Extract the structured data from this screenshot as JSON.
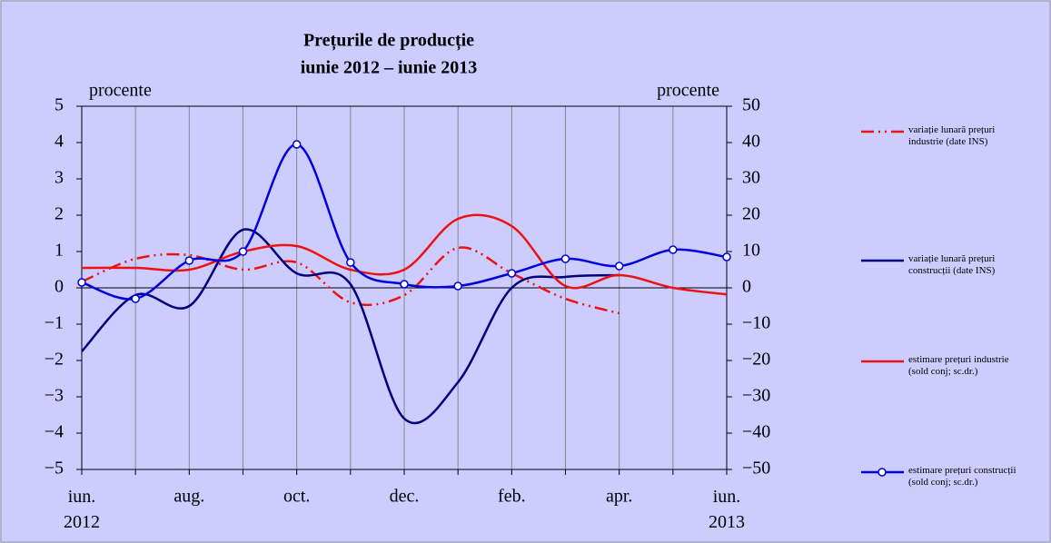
{
  "chart_data": {
    "type": "line",
    "title": "Prețurile de producție",
    "subtitle": "iunie 2012 – iunie 2013",
    "y_label": "procente",
    "y2_label": "procente",
    "categories": [
      "iun. 2012",
      null,
      "aug.",
      null,
      "oct.",
      null,
      "dec.",
      null,
      "feb.",
      null,
      "apr.",
      null,
      "iun. 2013"
    ],
    "ylim": [
      -5,
      5
    ],
    "yticks": [
      {
        "value": -5,
        "label": "−5"
      },
      {
        "value": -4,
        "label": "−4"
      },
      {
        "value": -3,
        "label": "−3"
      },
      {
        "value": -2,
        "label": "−2"
      },
      {
        "value": -1,
        "label": "−1"
      },
      0,
      1,
      2,
      3,
      4,
      5
    ],
    "y2lim": [
      -50,
      50
    ],
    "y2ticks": [
      {
        "value": -50,
        "label": "−50"
      },
      {
        "value": -40,
        "label": "−40"
      },
      {
        "value": -30,
        "label": "−30"
      },
      {
        "value": -20,
        "label": "−20"
      },
      {
        "value": -10,
        "label": "−10"
      },
      0,
      10,
      20,
      30,
      40,
      50
    ],
    "grid": "vertical",
    "legend": "right",
    "series": [
      {
        "name": "variație lunară prețuri industrie (date INS)",
        "color": "#ee1111",
        "style": "dashdot",
        "values": [
          0.17,
          0.8,
          0.9,
          0.5,
          0.7,
          -0.4,
          -0.2,
          1.1,
          0.4,
          -0.3,
          -0.7,
          null,
          null
        ]
      },
      {
        "name": "variație lunară prețuri construcții (date INS)",
        "color": "#000080",
        "style": "solid",
        "values": [
          -1.75,
          -0.2,
          -0.5,
          1.6,
          0.4,
          0.1,
          -3.6,
          -2.6,
          0.0,
          0.3,
          0.35,
          null,
          null
        ]
      },
      {
        "name": "estimare prețuri industrie (sold conj; sc.dr.)",
        "color": "#ee1111",
        "style": "solid",
        "axis": "y2",
        "values": [
          5.5,
          5.5,
          5,
          10,
          11.5,
          5,
          5,
          19,
          17,
          0.5,
          3.5,
          0,
          -1.8
        ]
      },
      {
        "name": "estimare prețuri construcții (sold conj; sc.dr.)",
        "color": "#0000dd",
        "style": "solid",
        "markers": true,
        "axis": "y2",
        "values": [
          1.5,
          -3,
          7.5,
          10,
          39.5,
          7,
          1,
          0.5,
          4,
          8,
          6,
          10.5,
          8.5
        ]
      }
    ]
  }
}
